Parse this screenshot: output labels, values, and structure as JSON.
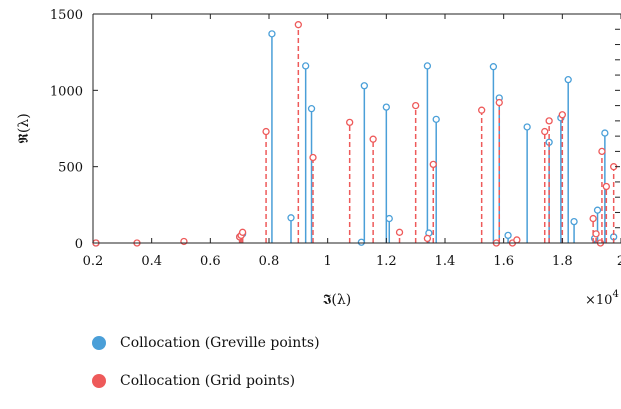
{
  "chart_data": {
    "type": "stem",
    "xlabel": "𝕴(λ)",
    "ylabel": "𝕽(λ)",
    "x_exponent_label": "×10",
    "x_exponent_sup": "4",
    "xlim": [
      0.2,
      2.0
    ],
    "ylim": [
      0,
      1500
    ],
    "xticks": [
      "0.2",
      "0.4",
      "0.6",
      "0.8",
      "1",
      "1.2",
      "1.4",
      "1.6",
      "1.8",
      "2"
    ],
    "yticks": [
      "0",
      "500",
      "1000",
      "1500"
    ],
    "series": [
      {
        "name": "Collocation (Greville points)",
        "color": "#4a9fd8",
        "line": "solid",
        "points": [
          [
            0.21,
            0
          ],
          [
            0.7,
            40
          ],
          [
            0.71,
            60
          ],
          [
            0.81,
            1370
          ],
          [
            0.875,
            165
          ],
          [
            0.925,
            1160
          ],
          [
            0.945,
            880
          ],
          [
            1.115,
            5
          ],
          [
            1.125,
            1030
          ],
          [
            1.2,
            890
          ],
          [
            1.21,
            160
          ],
          [
            1.34,
            1160
          ],
          [
            1.345,
            65
          ],
          [
            1.37,
            810
          ],
          [
            1.565,
            1155
          ],
          [
            1.585,
            950
          ],
          [
            1.615,
            50
          ],
          [
            1.68,
            760
          ],
          [
            1.755,
            660
          ],
          [
            1.795,
            820
          ],
          [
            1.82,
            1070
          ],
          [
            1.84,
            140
          ],
          [
            1.91,
            30
          ],
          [
            1.92,
            215
          ],
          [
            1.945,
            720
          ],
          [
            1.975,
            40
          ]
        ]
      },
      {
        "name": "Collocation (Grid points)",
        "color": "#ee5a5a",
        "line": "dashed",
        "points": [
          [
            0.21,
            0
          ],
          [
            0.35,
            0
          ],
          [
            0.51,
            10
          ],
          [
            0.7,
            40
          ],
          [
            0.705,
            50
          ],
          [
            0.71,
            70
          ],
          [
            0.79,
            730
          ],
          [
            0.9,
            1430
          ],
          [
            0.95,
            560
          ],
          [
            1.075,
            790
          ],
          [
            1.155,
            680
          ],
          [
            1.245,
            70
          ],
          [
            1.3,
            900
          ],
          [
            1.34,
            30
          ],
          [
            1.36,
            515
          ],
          [
            1.525,
            870
          ],
          [
            1.575,
            0
          ],
          [
            1.585,
            920
          ],
          [
            1.63,
            0
          ],
          [
            1.645,
            20
          ],
          [
            1.74,
            730
          ],
          [
            1.755,
            800
          ],
          [
            1.8,
            840
          ],
          [
            1.905,
            160
          ],
          [
            1.915,
            60
          ],
          [
            1.93,
            0
          ],
          [
            1.935,
            600
          ],
          [
            1.95,
            370
          ],
          [
            1.975,
            500
          ]
        ]
      }
    ]
  }
}
